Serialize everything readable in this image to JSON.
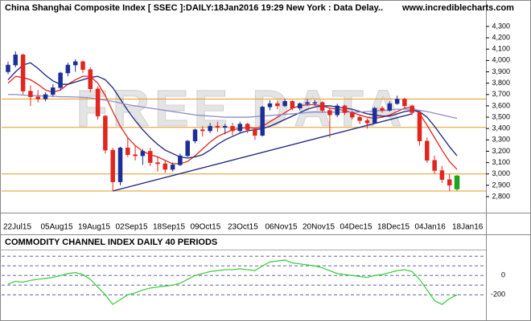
{
  "chart_data": {
    "type": "candlestick",
    "title": "China Shanghai Composite Index [ SSEC ]:DAILY:18Jan2016 19:29 New York : Data Delay..",
    "source": "www.incrediblecharts.com",
    "watermark": "FREE DATA",
    "categories": [
      "22Jul15",
      null,
      null,
      null,
      null,
      "05Aug15",
      null,
      null,
      null,
      null,
      "19Aug15",
      null,
      null,
      null,
      null,
      "02Sep15",
      null,
      null,
      null,
      null,
      "18Sep15",
      null,
      null,
      null,
      null,
      "09Oct15",
      null,
      null,
      null,
      null,
      "23Oct15",
      null,
      null,
      null,
      null,
      "06Nov15",
      null,
      null,
      null,
      null,
      "20Nov15",
      null,
      null,
      null,
      null,
      "04Dec15",
      null,
      null,
      null,
      null,
      "18Dec15",
      null,
      null,
      null,
      null,
      "04Jan16",
      null,
      null,
      null,
      null,
      "18Jan16"
    ],
    "open": [
      3900,
      3960,
      4050,
      3730,
      3680,
      3660,
      3700,
      3760,
      3890,
      3960,
      3990,
      3920,
      3750,
      3510,
      3210,
      2930,
      3230,
      3170,
      3160,
      3200,
      3100,
      3090,
      3040,
      3080,
      3160,
      3290,
      3390,
      3380,
      3420,
      3410,
      3420,
      3380,
      3440,
      3390,
      3340,
      3590,
      3620,
      3600,
      3640,
      3580,
      3620,
      3630,
      3630,
      3560,
      3520,
      3600,
      3540,
      3500,
      3470,
      3450,
      3580,
      3560,
      3620,
      3660,
      3600,
      3540,
      3290,
      3120,
      3030,
      2950,
      2870
    ],
    "high": [
      3990,
      4080,
      4060,
      3780,
      3740,
      3720,
      3790,
      3900,
      3980,
      4010,
      4000,
      3940,
      3770,
      3520,
      3230,
      3240,
      3320,
      3250,
      3220,
      3230,
      3150,
      3120,
      3100,
      3180,
      3300,
      3400,
      3420,
      3450,
      3460,
      3440,
      3450,
      3460,
      3450,
      3410,
      3600,
      3650,
      3640,
      3660,
      3650,
      3630,
      3660,
      3650,
      3640,
      3580,
      3620,
      3610,
      3560,
      3520,
      3490,
      3590,
      3600,
      3640,
      3690,
      3670,
      3610,
      3550,
      3320,
      3160,
      3070,
      3000,
      2990
    ],
    "low": [
      3880,
      3940,
      3700,
      3600,
      3630,
      3640,
      3680,
      3740,
      3860,
      3900,
      3890,
      3720,
      3480,
      3180,
      2850,
      2900,
      3150,
      3120,
      3080,
      3070,
      3020,
      3010,
      3020,
      3070,
      3150,
      3270,
      3330,
      3360,
      3370,
      3350,
      3340,
      3360,
      3360,
      3300,
      3330,
      3560,
      3570,
      3590,
      3560,
      3560,
      3600,
      3600,
      3540,
      3320,
      3500,
      3520,
      3480,
      3440,
      3400,
      3440,
      3540,
      3550,
      3610,
      3580,
      3520,
      3250,
      3100,
      3000,
      2920,
      2850,
      2850
    ],
    "close": [
      3960,
      4050,
      3730,
      3680,
      3660,
      3700,
      3760,
      3890,
      3960,
      3990,
      3920,
      3750,
      3510,
      3210,
      2930,
      3230,
      3170,
      3160,
      3200,
      3100,
      3090,
      3040,
      3080,
      3160,
      3290,
      3390,
      3380,
      3420,
      3410,
      3420,
      3380,
      3440,
      3390,
      3340,
      3590,
      3620,
      3600,
      3640,
      3580,
      3620,
      3630,
      3630,
      3560,
      3520,
      3600,
      3540,
      3500,
      3470,
      3450,
      3580,
      3560,
      3620,
      3660,
      3600,
      3540,
      3290,
      3120,
      3030,
      2950,
      2900,
      2980
    ],
    "up_color": "#1c2f96",
    "down_color": "#e0261e",
    "last_color": "#1aa51a",
    "lines": [
      {
        "color": "#e0261e",
        "values": [
          3800,
          3860,
          3850,
          3830,
          3790,
          3740,
          3720,
          3740,
          3790,
          3830,
          3860,
          3860,
          3800,
          3690,
          3550,
          3420,
          3320,
          3250,
          3200,
          3170,
          3150,
          3120,
          3090,
          3090,
          3110,
          3160,
          3220,
          3280,
          3330,
          3360,
          3390,
          3400,
          3410,
          3400,
          3420,
          3460,
          3500,
          3540,
          3580,
          3600,
          3610,
          3610,
          3600,
          3580,
          3570,
          3560,
          3540,
          3520,
          3500,
          3490,
          3500,
          3520,
          3550,
          3580,
          3590,
          3530,
          3430,
          3320,
          3210,
          3110,
          3040
        ]
      },
      {
        "color": "#1a237e",
        "values": [
          3830,
          3900,
          3960,
          3980,
          3930,
          3870,
          3820,
          3790,
          3790,
          3810,
          3830,
          3850,
          3860,
          3830,
          3760,
          3660,
          3560,
          3470,
          3390,
          3320,
          3260,
          3210,
          3180,
          3150,
          3140,
          3150,
          3170,
          3210,
          3260,
          3300,
          3330,
          3360,
          3380,
          3390,
          3400,
          3420,
          3450,
          3480,
          3510,
          3540,
          3570,
          3590,
          3600,
          3600,
          3590,
          3580,
          3570,
          3550,
          3530,
          3520,
          3510,
          3510,
          3530,
          3550,
          3560,
          3550,
          3500,
          3420,
          3330,
          3240,
          3160
        ]
      },
      {
        "color": "#8c8cc8",
        "values": [
          3700,
          3700,
          3695,
          3690,
          3690,
          3685,
          3685,
          3680,
          3680,
          3678,
          3675,
          3670,
          3660,
          3650,
          3640,
          3625,
          3610,
          3600,
          3590,
          3580,
          3570,
          3560,
          3550,
          3540,
          3530,
          3520,
          3515,
          3510,
          3505,
          3500,
          3500,
          3500,
          3500,
          3505,
          3510,
          3515,
          3520,
          3525,
          3530,
          3535,
          3540,
          3545,
          3545,
          3545,
          3545,
          3545,
          3545,
          3545,
          3550,
          3555,
          3560,
          3565,
          3570,
          3570,
          3570,
          3560,
          3550,
          3535,
          3520,
          3505,
          3490
        ]
      }
    ],
    "trendlines": [
      {
        "color": "#1a237e",
        "x": [
          14,
          54
        ],
        "y": [
          2850,
          3530
        ]
      }
    ],
    "hlines": {
      "color": "#e8961e",
      "values": [
        3660,
        3410,
        3000,
        2850
      ]
    },
    "ylim": [
      2680,
      4533
    ],
    "yticks": [
      {
        "value": 4300,
        "label": "4,300"
      },
      {
        "value": 4200,
        "label": "4,200"
      },
      {
        "value": 4100,
        "label": "4,100"
      },
      {
        "value": 4000,
        "label": "4,000"
      },
      {
        "value": 3900,
        "label": "3,900"
      },
      {
        "value": 3800,
        "label": "3,800"
      },
      {
        "value": 3700,
        "label": "3,700"
      },
      {
        "value": 3600,
        "label": "3,600"
      },
      {
        "value": 3500,
        "label": "3,500"
      },
      {
        "value": 3400,
        "label": "3,400"
      },
      {
        "value": 3300,
        "label": "3,300"
      },
      {
        "value": 3200,
        "label": "3,200"
      },
      {
        "value": 3100,
        "label": "3,100"
      },
      {
        "value": 3000,
        "label": "3,000"
      },
      {
        "value": 2900,
        "label": "2,900"
      },
      {
        "value": 2800,
        "label": "2,800"
      }
    ],
    "indicator": {
      "type": "line",
      "title": "COMMODITY CHANNEL INDEX DAILY 40 PERIODS",
      "color": "#33cc33",
      "level_color": "#6464a8",
      "values": [
        -90,
        -60,
        -70,
        -50,
        -40,
        -30,
        -20,
        0,
        20,
        30,
        10,
        -40,
        -120,
        -200,
        -300,
        -250,
        -200,
        -180,
        -150,
        -130,
        -120,
        -110,
        -100,
        -80,
        -40,
        0,
        20,
        40,
        50,
        60,
        60,
        70,
        60,
        50,
        100,
        140,
        150,
        160,
        130,
        120,
        110,
        100,
        80,
        50,
        20,
        10,
        0,
        -10,
        -20,
        0,
        10,
        30,
        50,
        60,
        40,
        -40,
        -150,
        -260,
        -300,
        -240,
        -200
      ],
      "levels": [
        200,
        100,
        -100
      ],
      "ylim": [
        -430,
        260
      ],
      "yticks": [
        0,
        -200
      ]
    }
  }
}
